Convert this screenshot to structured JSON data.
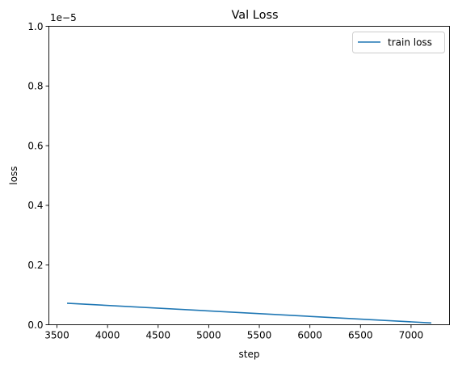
{
  "chart_data": {
    "type": "line",
    "title": "Val Loss",
    "xlabel": "step",
    "ylabel": "loss",
    "offset_label": "1e−5",
    "xlim": [
      3420,
      7380
    ],
    "ylim": [
      0,
      1.0
    ],
    "y_scale_factor": 1e-05,
    "x_ticks": [
      3500,
      4000,
      4500,
      5000,
      5500,
      6000,
      6500,
      7000
    ],
    "x_tick_labels": [
      "3500",
      "4000",
      "4500",
      "5000",
      "5500",
      "6000",
      "6500",
      "7000"
    ],
    "y_ticks": [
      0.0,
      0.2,
      0.4,
      0.6,
      0.8,
      1.0
    ],
    "y_tick_labels": [
      "0.0",
      "0.2",
      "0.4",
      "0.6",
      "0.8",
      "1.0"
    ],
    "grid": false,
    "legend_position": "top-right",
    "series": [
      {
        "name": "train loss",
        "color": "#1f77b4",
        "x": [
          3600,
          7200
        ],
        "y": [
          0.072,
          0.006
        ]
      }
    ]
  }
}
